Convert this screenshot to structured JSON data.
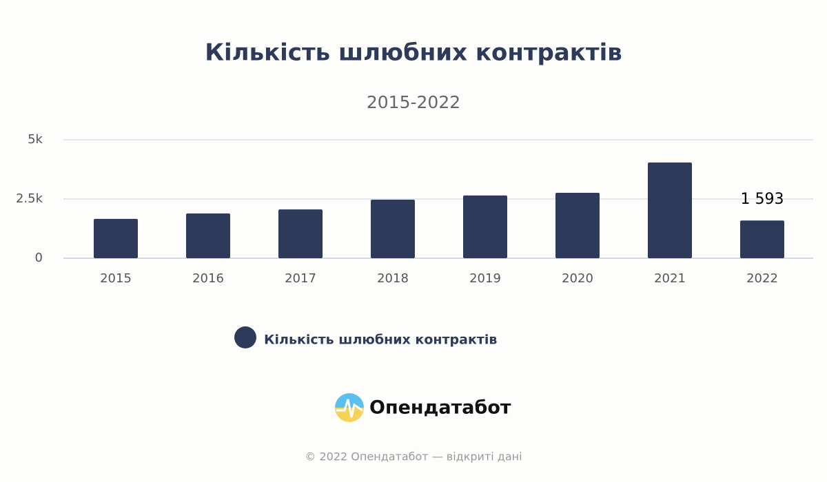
{
  "chart_data": {
    "type": "bar",
    "title": "Кількість шлюбних контрактів",
    "subtitle": "2015-2022",
    "categories": [
      "2015",
      "2016",
      "2017",
      "2018",
      "2019",
      "2020",
      "2021",
      "2022"
    ],
    "series": [
      {
        "name": "Кількість шлюбних контрактів",
        "color": "#2d3a5a",
        "values": [
          1660,
          1890,
          2060,
          2470,
          2650,
          2760,
          4040,
          1593
        ],
        "value_labels": [
          null,
          null,
          null,
          null,
          null,
          null,
          null,
          "1 593"
        ]
      }
    ],
    "ylim": [
      0,
      5000
    ],
    "yticks": [
      0,
      {
        "value": 2500,
        "label": "2.5k"
      },
      {
        "value": 5000,
        "label": "5k"
      }
    ],
    "grid": true
  },
  "logo": "Опендатабот",
  "footer": "© 2022 Опендатабот — відкриті дані"
}
